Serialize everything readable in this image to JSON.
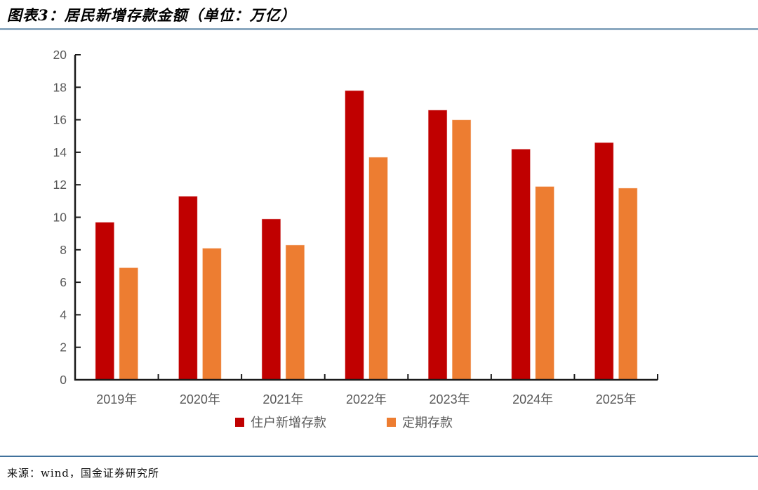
{
  "header": {
    "title": "图表3：居民新增存款金额（单位：万亿）"
  },
  "footer": {
    "source": "来源：wind，国金证券研究所"
  },
  "styles": {
    "title_rule_color": "#8CA9C0",
    "footer_rule_color": "#40719C",
    "background": "#ffffff"
  },
  "chart_data": {
    "type": "bar",
    "title": "居民新增存款金额",
    "unit": "万亿",
    "categories": [
      "2019年",
      "2020年",
      "2021年",
      "2022年",
      "2023年",
      "2024年",
      "2025年"
    ],
    "series": [
      {
        "name": "住户新增存款",
        "color": "#C00000",
        "values": [
          9.7,
          11.3,
          9.9,
          17.8,
          16.6,
          14.2,
          14.6
        ]
      },
      {
        "name": "定期存款",
        "color": "#ED7D31",
        "values": [
          6.9,
          8.1,
          8.3,
          13.7,
          16.0,
          11.9,
          11.8
        ]
      }
    ],
    "xlabel": "",
    "ylabel": "",
    "ylim": [
      0,
      20
    ],
    "ytick_step": 2,
    "grid": false,
    "legend_position": "bottom",
    "axis_color": "#1a1a1a",
    "tick_label_color": "#595959"
  }
}
